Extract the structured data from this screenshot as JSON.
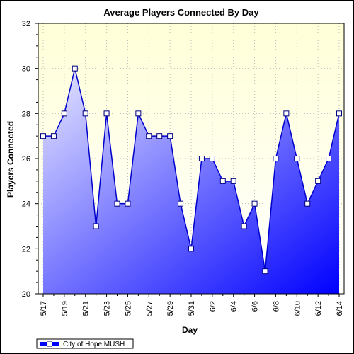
{
  "chart_data": {
    "type": "area",
    "title": "Average Players Connected By Day",
    "xlabel": "Day",
    "ylabel": "Players Connected",
    "ylim": [
      20,
      32
    ],
    "yticks": [
      20,
      22,
      24,
      26,
      28,
      30,
      32
    ],
    "x": [
      "5/17",
      "5/18",
      "5/19",
      "5/20",
      "5/21",
      "5/22",
      "5/23",
      "5/24",
      "5/25",
      "5/26",
      "5/27",
      "5/28",
      "5/29",
      "5/30",
      "5/31",
      "6/1",
      "6/2",
      "6/3",
      "6/4",
      "6/5",
      "6/6",
      "6/7",
      "6/8",
      "6/9",
      "6/10",
      "6/11",
      "6/12",
      "6/13",
      "6/14"
    ],
    "xtick_labels": [
      "5/17",
      "5/19",
      "5/21",
      "5/23",
      "5/25",
      "5/27",
      "5/29",
      "5/31",
      "6/2",
      "6/4",
      "6/6",
      "6/8",
      "6/10",
      "6/12",
      "6/14"
    ],
    "series": [
      {
        "name": "City of Hope MUSH",
        "values": [
          27,
          27,
          28,
          30,
          28,
          23,
          28,
          24,
          24,
          28,
          27,
          27,
          27,
          24,
          22,
          26,
          26,
          25,
          25,
          23,
          24,
          21,
          26,
          28,
          26,
          24,
          25,
          26,
          28
        ]
      }
    ],
    "grid": true,
    "legend_position": "bottom-left",
    "colors": {
      "series_line": "#0000cc",
      "fill_light": "#e8e8ff",
      "fill_dark": "#0000ff",
      "plot_bg_top": "#ffffd8",
      "plot_bg_bottom": "#ffffff",
      "marker_fill": "#ffffff"
    }
  }
}
